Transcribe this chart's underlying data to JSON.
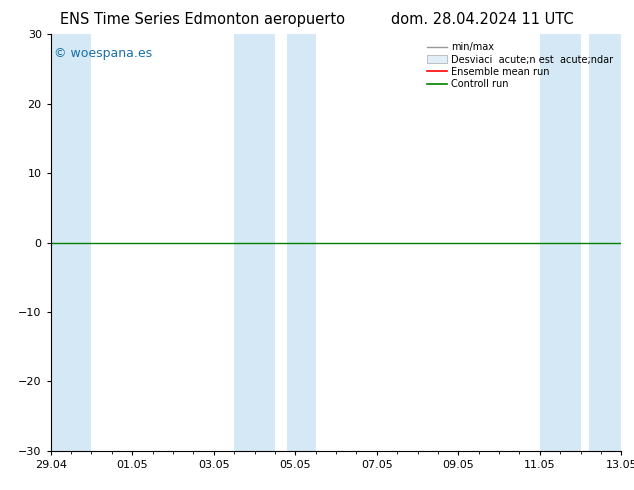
{
  "title": "ENS Time Series Edmonton aeropuerto",
  "title_right": "dom. 28.04.2024 11 UTC",
  "watermark": "© woespana.es",
  "ylim": [
    -30,
    30
  ],
  "yticks": [
    -30,
    -20,
    -10,
    0,
    10,
    20,
    30
  ],
  "xtick_labels": [
    "29.04",
    "01.05",
    "03.05",
    "05.05",
    "07.05",
    "09.05",
    "11.05",
    "13.05"
  ],
  "xtick_positions": [
    0,
    2,
    4,
    6,
    8,
    10,
    12,
    14
  ],
  "bg_color": "#ffffff",
  "plot_bg_color": "#ffffff",
  "band_color": "#d4e8f5",
  "zero_line_color": "#008000",
  "legend_minmax_color": "#999999",
  "legend_std_color": "#cccccc",
  "legend_ensemble_color": "#ff0000",
  "legend_control_color": "#008000",
  "title_fontsize": 10.5,
  "tick_fontsize": 8,
  "watermark_color": "#1a6fa8",
  "watermark_fontsize": 9,
  "blue_bands": [
    [
      0,
      1
    ],
    [
      4.5,
      5.5
    ],
    [
      5.8,
      6.5
    ],
    [
      12,
      13
    ],
    [
      13.2,
      14
    ]
  ]
}
